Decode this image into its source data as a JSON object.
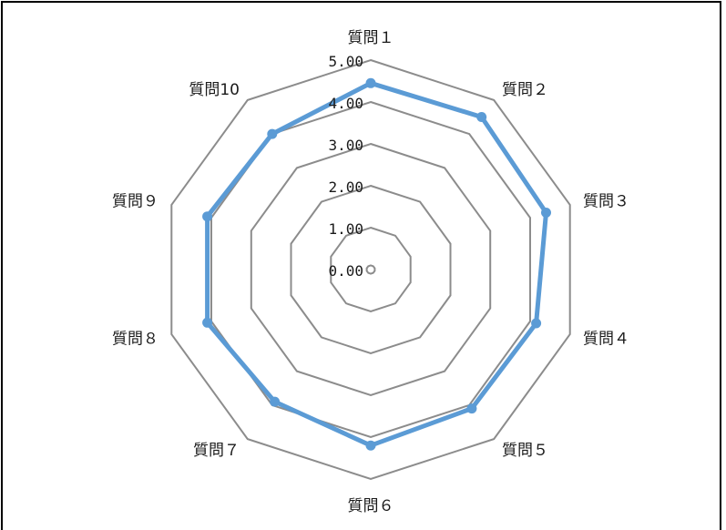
{
  "chart_data": {
    "type": "radar",
    "categories": [
      "質問１",
      "質問２",
      "質問３",
      "質問４",
      "質問５",
      "質問６",
      "質問７",
      "質問８",
      "質問９",
      "質問10"
    ],
    "series": [
      {
        "values": [
          4.45,
          4.5,
          4.4,
          4.15,
          4.1,
          4.2,
          3.9,
          4.1,
          4.1,
          4.0
        ]
      }
    ],
    "tick_labels": [
      "0.00",
      "1.00",
      "2.00",
      "3.00",
      "4.00",
      "5.00"
    ],
    "ylim": [
      0,
      5
    ],
    "ticks": [
      0,
      1,
      2,
      3,
      4,
      5
    ],
    "grid": true,
    "legend": "none",
    "colors": {
      "grid": "#8c8c8c",
      "series": "#5b9bd5",
      "text": "#1a1a1a"
    }
  }
}
